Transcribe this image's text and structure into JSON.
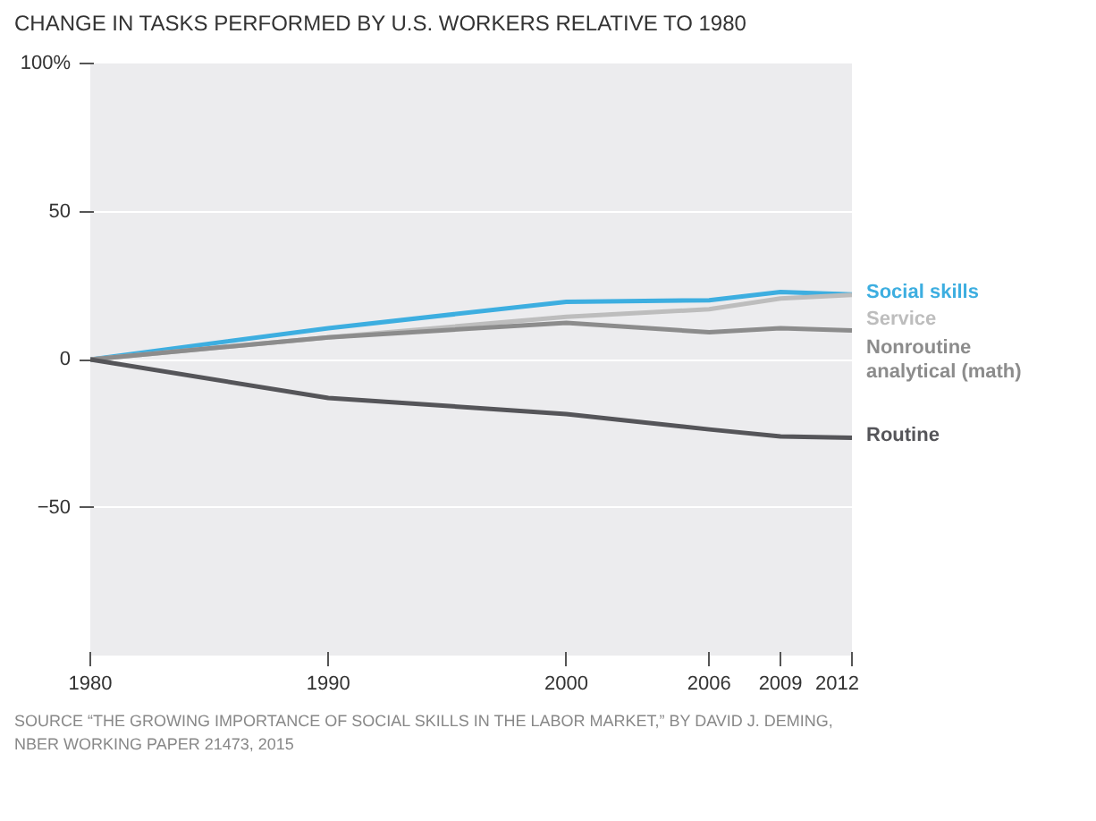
{
  "chart_data": {
    "type": "line",
    "title": "CHANGE IN TASKS PERFORMED BY U.S. WORKERS RELATIVE TO 1980",
    "x": [
      1980,
      1990,
      2000,
      2006,
      2009,
      2012
    ],
    "series": [
      {
        "name": "Social skills",
        "color": "#3daee0",
        "values": [
          0,
          10.6,
          19.5,
          20,
          22.8,
          22
        ]
      },
      {
        "name": "Service",
        "color": "#bdbdbd",
        "values": [
          0,
          7.5,
          14.4,
          17,
          20.6,
          21.8
        ]
      },
      {
        "name": "Nonroutine analytical (math)",
        "color": "#8c8c8c",
        "values": [
          0,
          7.5,
          12.4,
          9.2,
          10.6,
          9.8
        ]
      },
      {
        "name": "Routine",
        "color": "#555559",
        "values": [
          0,
          -13,
          -18.4,
          -23.6,
          -26,
          -26.4
        ]
      }
    ],
    "xlim": [
      1980,
      2012
    ],
    "xticks": [
      1980,
      1990,
      2000,
      2006,
      2009,
      2012
    ],
    "ylim": [
      -100,
      100
    ],
    "yticks": [
      {
        "value": 100,
        "label": "100%"
      },
      50,
      0,
      -50
    ],
    "grid": "y",
    "line_style": "solid",
    "annotations": [
      "SOURCE “THE GROWING IMPORTANCE OF SOCIAL SKILLS IN THE LABOR MARKET,” BY DAVID J. DEMING, NBER WORKING PAPER 21473, 2015"
    ]
  }
}
